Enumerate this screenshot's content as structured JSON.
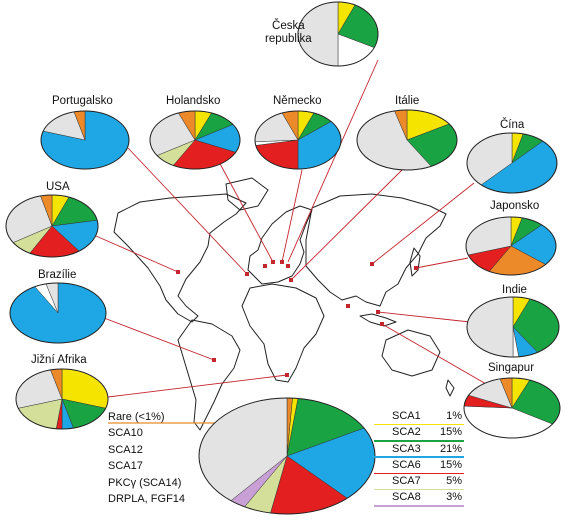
{
  "legend": {
    "left": [
      {
        "label": "Rare (<1%)",
        "color": "#ec8a2a"
      },
      {
        "label": "SCA10",
        "color": "#d9d9d9"
      },
      {
        "label": "SCA12",
        "color": "#d9d9d9"
      },
      {
        "label": "SCA17",
        "color": "#d9d9d9"
      },
      {
        "label": "PKCγ (SCA14)",
        "color": "#d9d9d9"
      },
      {
        "label": "DRPLA, FGF14",
        "color": "#d9d9d9"
      }
    ],
    "right": [
      {
        "name": "SCA1",
        "pct": "1%",
        "color": "#f5e400"
      },
      {
        "name": "SCA2",
        "pct": "15%",
        "color": "#1aa343"
      },
      {
        "name": "SCA3",
        "pct": "21%",
        "color": "#1ea7e4"
      },
      {
        "name": "SCA6",
        "pct": "15%",
        "color": "#e3201f"
      },
      {
        "name": "SCA7",
        "pct": "5%",
        "color": "#d4e09a"
      },
      {
        "name": "SCA8",
        "pct": "3%",
        "color": "#c9a0d6"
      }
    ]
  },
  "colors": {
    "sca1": "#f5e400",
    "sca2": "#1aa343",
    "sca3": "#1ea7e4",
    "sca6": "#e3201f",
    "sca7": "#d4e09a",
    "sca8": "#c9a0d6",
    "rare": "#ec8a2a",
    "other": "#e3e3e3",
    "white": "#ffffff",
    "line": "#c4262e",
    "map": "#222222"
  },
  "countries": [
    {
      "key": "ceska",
      "label": "Česká\nrepublika",
      "slices": [
        [
          "sca1",
          7
        ],
        [
          "sca2",
          25
        ],
        [
          "white",
          18
        ],
        [
          "other",
          50
        ]
      ]
    },
    {
      "key": "portugalsko",
      "label": "Portugalsko",
      "slices": [
        [
          "sca3",
          80
        ],
        [
          "other",
          16
        ],
        [
          "rare",
          4
        ]
      ]
    },
    {
      "key": "holandsko",
      "label": "Holandsko",
      "slices": [
        [
          "sca1",
          6
        ],
        [
          "sca2",
          10
        ],
        [
          "sca3",
          16
        ],
        [
          "sca6",
          26
        ],
        [
          "sca7",
          8
        ],
        [
          "other",
          28
        ],
        [
          "rare",
          6
        ]
      ]
    },
    {
      "key": "nemecko",
      "label": "Německo",
      "slices": [
        [
          "sca1",
          6
        ],
        [
          "sca2",
          8
        ],
        [
          "sca3",
          36
        ],
        [
          "sca6",
          22
        ],
        [
          "white",
          2
        ],
        [
          "other",
          20
        ],
        [
          "rare",
          6
        ]
      ]
    },
    {
      "key": "italie",
      "label": "Itálie",
      "slices": [
        [
          "sca1",
          16
        ],
        [
          "sca2",
          26
        ],
        [
          "other",
          54
        ],
        [
          "rare",
          4
        ]
      ]
    },
    {
      "key": "cina",
      "label": "Čína",
      "slices": [
        [
          "sca1",
          4
        ],
        [
          "sca2",
          8
        ],
        [
          "sca3",
          50
        ],
        [
          "other",
          38
        ]
      ]
    },
    {
      "key": "usa",
      "label": "USA",
      "slices": [
        [
          "sca1",
          6
        ],
        [
          "sca2",
          16
        ],
        [
          "sca3",
          18
        ],
        [
          "sca6",
          18
        ],
        [
          "sca7",
          8
        ],
        [
          "other",
          30
        ],
        [
          "rare",
          4
        ]
      ]
    },
    {
      "key": "japonsko",
      "label": "Japonsko",
      "slices": [
        [
          "sca1",
          4
        ],
        [
          "sca2",
          8
        ],
        [
          "sca3",
          24
        ],
        [
          "rare",
          22
        ],
        [
          "sca6",
          12
        ],
        [
          "other",
          30
        ]
      ]
    },
    {
      "key": "brazilie",
      "label": "Brazílie",
      "slices": [
        [
          "sca3",
          92
        ],
        [
          "white",
          4
        ],
        [
          "other",
          4
        ]
      ]
    },
    {
      "key": "indie",
      "label": "Indie",
      "slices": [
        [
          "sca1",
          6
        ],
        [
          "sca2",
          35
        ],
        [
          "sca3",
          7
        ],
        [
          "white",
          2
        ],
        [
          "other",
          50
        ]
      ]
    },
    {
      "key": "singapur",
      "label": "Singapur",
      "slices": [
        [
          "sca1",
          6
        ],
        [
          "sca2",
          28
        ],
        [
          "white",
          42
        ],
        [
          "sca6",
          6
        ],
        [
          "other",
          14
        ],
        [
          "rare",
          4
        ]
      ]
    },
    {
      "key": "afrika",
      "label": "Jižní Afrika",
      "slices": [
        [
          "sca1",
          30
        ],
        [
          "sca2",
          16
        ],
        [
          "sca3",
          4
        ],
        [
          "sca6",
          2
        ],
        [
          "sca7",
          18
        ],
        [
          "other",
          26
        ],
        [
          "rare",
          4
        ]
      ]
    },
    {
      "key": "world",
      "label": "",
      "slices": [
        [
          "rare",
          1
        ],
        [
          "sca1",
          1
        ],
        [
          "sca2",
          15
        ],
        [
          "sca3",
          21
        ],
        [
          "sca6",
          15
        ],
        [
          "sca7",
          5
        ],
        [
          "sca8",
          3
        ],
        [
          "other",
          39
        ]
      ]
    }
  ]
}
